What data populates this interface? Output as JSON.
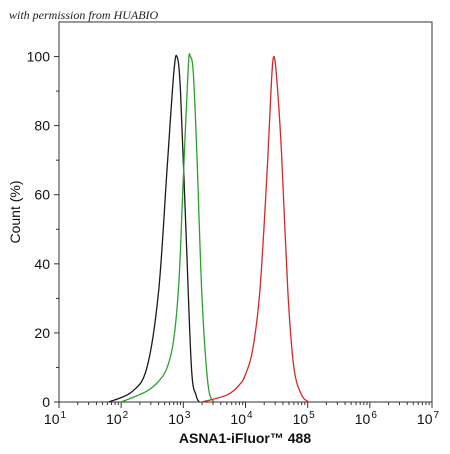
{
  "watermark": "with permission from HUABIO",
  "chart_data": {
    "type": "line",
    "xlabel": "ASNA1-iFluor™ 488",
    "ylabel": "Count (%)",
    "xscale": "log",
    "xlim": [
      10,
      10000000
    ],
    "ylim": [
      0,
      110
    ],
    "x_tick_base": "10",
    "x_ticks": [
      {
        "value": 10,
        "exp": "1"
      },
      {
        "value": 100,
        "exp": "2"
      },
      {
        "value": 1000,
        "exp": "3"
      },
      {
        "value": 10000,
        "exp": "4"
      },
      {
        "value": 100000,
        "exp": "5"
      },
      {
        "value": 1000000,
        "exp": "6"
      },
      {
        "value": 10000000,
        "exp": "7"
      }
    ],
    "y_ticks": [
      "0",
      "20",
      "40",
      "60",
      "80",
      "100"
    ],
    "grid": false,
    "legend": "none",
    "series": [
      {
        "color": "#1a1a1a",
        "x": [
          63,
          150,
          260,
          400,
          550,
          700,
          790,
          900,
          1100,
          1350,
          1600,
          1800
        ],
        "y": [
          0,
          3,
          10,
          32,
          68,
          95,
          100,
          90,
          50,
          10,
          2,
          0
        ]
      },
      {
        "color": "#2ca02c",
        "x": [
          100,
          250,
          400,
          550,
          700,
          850,
          1000,
          1200,
          1300,
          1450,
          1650,
          2000,
          2500,
          3100
        ],
        "y": [
          0,
          3,
          6,
          10,
          18,
          35,
          65,
          97,
          100,
          95,
          72,
          30,
          5,
          0
        ]
      },
      {
        "color": "#d62728",
        "x": [
          2000,
          5000,
          8000,
          10000,
          13000,
          17000,
          22000,
          26000,
          28500,
          32000,
          38000,
          48000,
          60000,
          80000,
          105000
        ],
        "y": [
          0,
          2,
          5,
          8,
          15,
          32,
          65,
          92,
          100,
          93,
          72,
          32,
          10,
          2,
          0
        ]
      }
    ]
  }
}
